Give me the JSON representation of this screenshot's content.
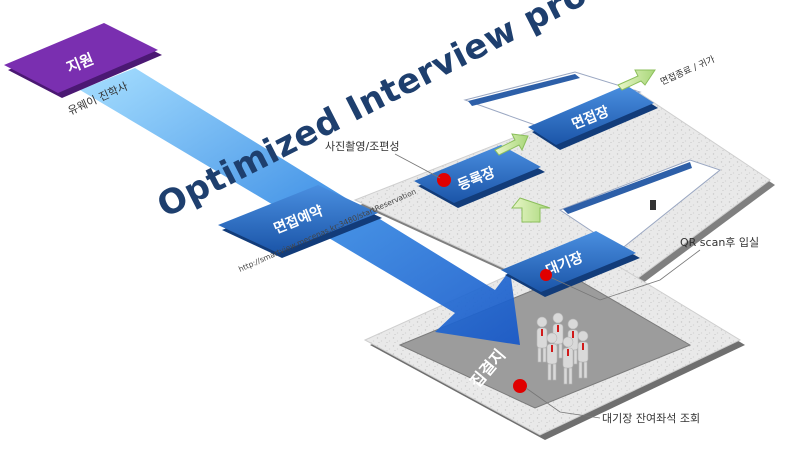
{
  "title": "Optimized Interview process",
  "nodes": {
    "apply": {
      "label": "지원",
      "caption": "유웨이 진학사"
    },
    "reservation": {
      "label": "면접예약",
      "url": "http://smartview.mecenas.kr:3480/startReservation"
    },
    "registration": {
      "label": "등록장",
      "caption": "사진촬영/조편성"
    },
    "interview_room": {
      "label": "면접장",
      "caption": "면접종료 / 귀가"
    },
    "waiting_room": {
      "label": "대기장",
      "caption": "QR scan후 입실"
    },
    "assembly": {
      "label": "집결지",
      "caption": "대기장 잔여좌석 조회"
    }
  },
  "colors": {
    "blue": "#1f5fb8",
    "blue_light": "#3f86dc",
    "purple": "#7a2fb0",
    "green_arrow": "#b7e08a",
    "marker": "#e00000",
    "title": "#1e3f6e"
  }
}
